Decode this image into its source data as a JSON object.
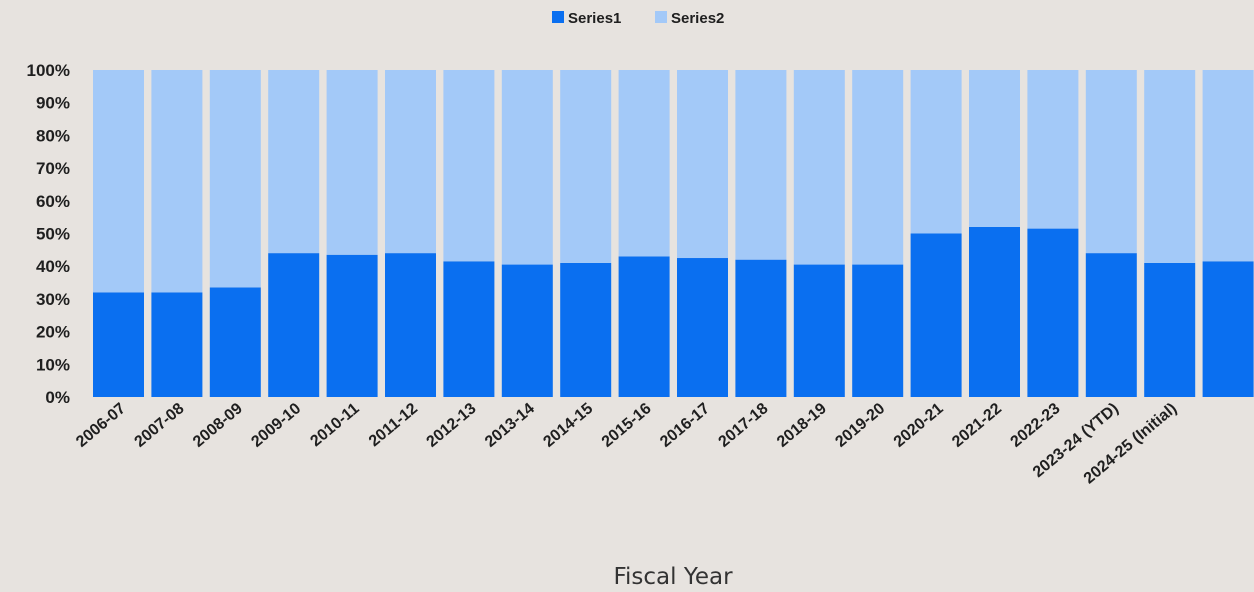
{
  "chart_data": {
    "type": "bar",
    "stacked": true,
    "percent_stacked": true,
    "categories": [
      "2006-07",
      "2007-08",
      "2008-09",
      "2009-10",
      "2010-11",
      "2011-12",
      "2012-13",
      "2013-14",
      "2014-15",
      "2015-16",
      "2016-17",
      "2017-18",
      "2018-19",
      "2019-20",
      "2020-21",
      "2021-22",
      "2022-23",
      "2023-24 (YTD)",
      "2024-25 (Initial)",
      ""
    ],
    "series": [
      {
        "name": "Series1",
        "color": "#0a6ff0",
        "values": [
          32,
          32,
          33.5,
          44,
          43.5,
          44,
          41.5,
          40.5,
          41,
          43,
          42.5,
          42,
          40.5,
          40.5,
          50,
          52,
          51.5,
          44,
          41,
          41.5
        ]
      },
      {
        "name": "Series2",
        "color": "#a3c9f8",
        "values": [
          68,
          68,
          66.5,
          56,
          56.5,
          56,
          58.5,
          59.5,
          59,
          57,
          57.5,
          58,
          59.5,
          59.5,
          50,
          48,
          48.5,
          56,
          59,
          58.5
        ]
      }
    ],
    "yticks": [
      "0%",
      "10%",
      "20%",
      "30%",
      "40%",
      "50%",
      "60%",
      "70%",
      "80%",
      "90%",
      "100%"
    ],
    "ylim": [
      0,
      100
    ],
    "xlabel": "Fiscal Year",
    "ylabel": "",
    "title": "",
    "legend_position": "top-center",
    "grid": false
  }
}
